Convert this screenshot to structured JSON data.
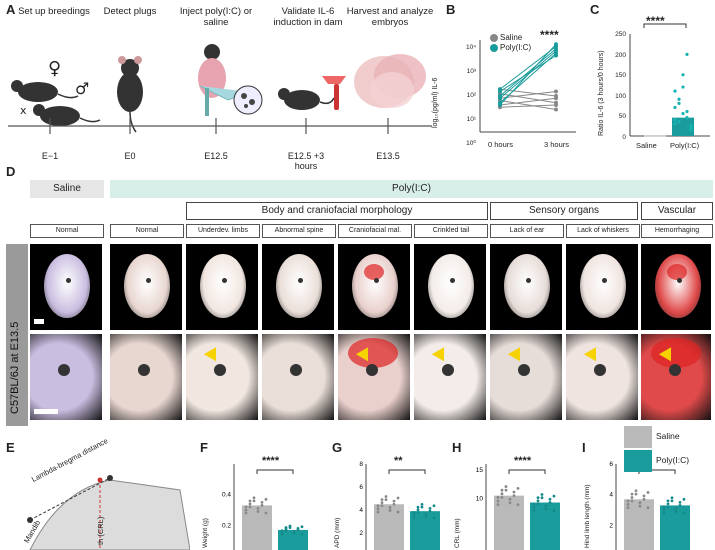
{
  "panel_a": {
    "label": "A",
    "steps": [
      "Set up breedings",
      "Detect plugs",
      "Inject poly(I:C) or saline",
      "Validate IL-6 induction in dam",
      "Harvest and analyze embryos"
    ],
    "timeline": [
      "E−1",
      "E0",
      "E12.5",
      "E12.5 +3 hours",
      "E13.5"
    ]
  },
  "panel_b": {
    "label": "B",
    "significance": "****",
    "ylabel": "log₁₀(pg/ml) IL-6",
    "ytick_labels": [
      "10⁴",
      "10³",
      "10²",
      "10¹",
      "10⁰"
    ],
    "legend": [
      "Saline",
      "Poly(I:C)"
    ],
    "xcats": [
      "0 hours",
      "3 hours"
    ]
  },
  "panel_c": {
    "label": "C",
    "significance": "****",
    "ylabel": "Ratio IL-6 (3 hours/0 hours)",
    "yticks": [
      "250",
      "200",
      "150",
      "100",
      "50",
      "0"
    ],
    "xcats": [
      "Saline",
      "Poly(I:C)"
    ]
  },
  "panel_d": {
    "label": "D",
    "saline": "Saline",
    "polyic": "Poly(I:C)",
    "groups": [
      "Body and craniofacial morphology",
      "Sensory organs",
      "Vascular"
    ],
    "columns": [
      "Normal",
      "Normal",
      "Underdev. limbs",
      "Abnormal spine",
      "Craniofacial mal.",
      "Crinkled tail",
      "Lack of ear",
      "Lack of whiskers",
      "Hemorrhaging"
    ],
    "side_label": "C57BL/6J at E13.5"
  },
  "panel_e": {
    "label": "E",
    "text1": "Lambda-bregma distance",
    "text2": "Mandib",
    "text3": "th (CRL)"
  },
  "small_panels": [
    {
      "label": "F",
      "ylabel": "Weight (g)",
      "yticks": [
        "0.4",
        "0.2"
      ],
      "sig": "****"
    },
    {
      "label": "G",
      "ylabel": "APD (mm)",
      "yticks": [
        "8",
        "6",
        "4",
        "2"
      ],
      "sig": "**"
    },
    {
      "label": "H",
      "ylabel": "CRL (mm)",
      "yticks": [
        "15",
        "10"
      ],
      "sig": "****"
    },
    {
      "label": "I",
      "ylabel": "Hind limb length (mm)",
      "yticks": [
        "6",
        "4",
        "2"
      ],
      "sig": "*"
    }
  ],
  "legend_bottom": [
    "Saline",
    "Poly(I:C)"
  ],
  "colors": {
    "saline": "#b9b9b9",
    "polyic": "#1b9c9c",
    "polyic_band": "#d8efe9"
  },
  "chart_data": [
    {
      "type": "scatter",
      "panel": "B",
      "categories": [
        "0 hours",
        "3 hours"
      ],
      "series": [
        {
          "name": "Saline",
          "values": [
            [
              1.4,
              1.0
            ],
            [
              1.7,
              1.3
            ],
            [
              1.2,
              1.5
            ],
            [
              1.9,
              1.6
            ],
            [
              1.5,
              1.8
            ],
            [
              1.1,
              1.2
            ]
          ]
        },
        {
          "name": "Poly(I:C)",
          "values": [
            [
              1.5,
              3.6
            ],
            [
              1.2,
              3.9
            ],
            [
              1.8,
              3.4
            ],
            [
              1.6,
              3.7
            ],
            [
              1.3,
              3.5
            ],
            [
              1.9,
              3.8
            ]
          ]
        }
      ],
      "ylabel": "log₁₀(pg/ml) IL-6",
      "ylim": [
        0,
        4
      ],
      "legend": "top-left"
    },
    {
      "type": "bar",
      "panel": "C",
      "categories": [
        "Saline",
        "Poly(I:C)"
      ],
      "values": [
        1,
        45
      ],
      "ylabel": "Ratio IL-6 (3 hours/0 hours)",
      "ylim": [
        0,
        250
      ]
    },
    {
      "type": "bar",
      "panel": "F",
      "categories": [
        "Saline",
        "Poly(I:C)"
      ],
      "values": [
        0.33,
        0.17
      ],
      "ylabel": "Weight (g)",
      "ylim": [
        0,
        0.6
      ]
    },
    {
      "type": "bar",
      "panel": "G",
      "categories": [
        "Saline",
        "Poly(I:C)"
      ],
      "values": [
        4.5,
        3.9
      ],
      "ylabel": "APD (mm)",
      "ylim": [
        0,
        8
      ]
    },
    {
      "type": "bar",
      "panel": "H",
      "categories": [
        "Saline",
        "Poly(I:C)"
      ],
      "values": [
        10.5,
        9.3
      ],
      "ylabel": "CRL (mm)",
      "ylim": [
        0,
        16
      ]
    },
    {
      "type": "bar",
      "panel": "I",
      "categories": [
        "Saline",
        "Poly(I:C)"
      ],
      "values": [
        3.7,
        3.3
      ],
      "ylabel": "Hind limb length (mm)",
      "ylim": [
        0,
        6
      ]
    }
  ]
}
